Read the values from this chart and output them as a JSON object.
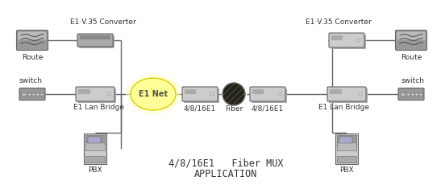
{
  "bg_color": "#ffffff",
  "title_line1": "4/8/16E1   Fiber MUX",
  "title_line2": "APPLICATION",
  "left_labels": {
    "e1v35": "E1·V.35 Converter",
    "route": "Route",
    "switch": "switch",
    "e1lan": "E1 Lan Bridge",
    "pbx": "PBX"
  },
  "right_labels": {
    "e1v35": "E1·V.35 Converter",
    "route": "Route",
    "switch": "switch",
    "e1lan": "E1 Lan Bridge",
    "pbx": "PBX"
  },
  "center_labels": {
    "left_mux": "4/8/16E1",
    "fiber": "Fiber",
    "right_mux": "4/8/16E1"
  },
  "e1net_label": "E1 Net",
  "colors": {
    "line": "#666666",
    "e1net_fill": "#ffff99",
    "e1net_edge": "#dddd00",
    "fiber_yellow": "#ffee00",
    "fiber_black": "#111111",
    "text": "#333333",
    "white": "#ffffff",
    "device_dark": "#888888",
    "device_mid": "#aaaaaa",
    "device_light": "#cccccc",
    "device_edge": "#666666"
  }
}
